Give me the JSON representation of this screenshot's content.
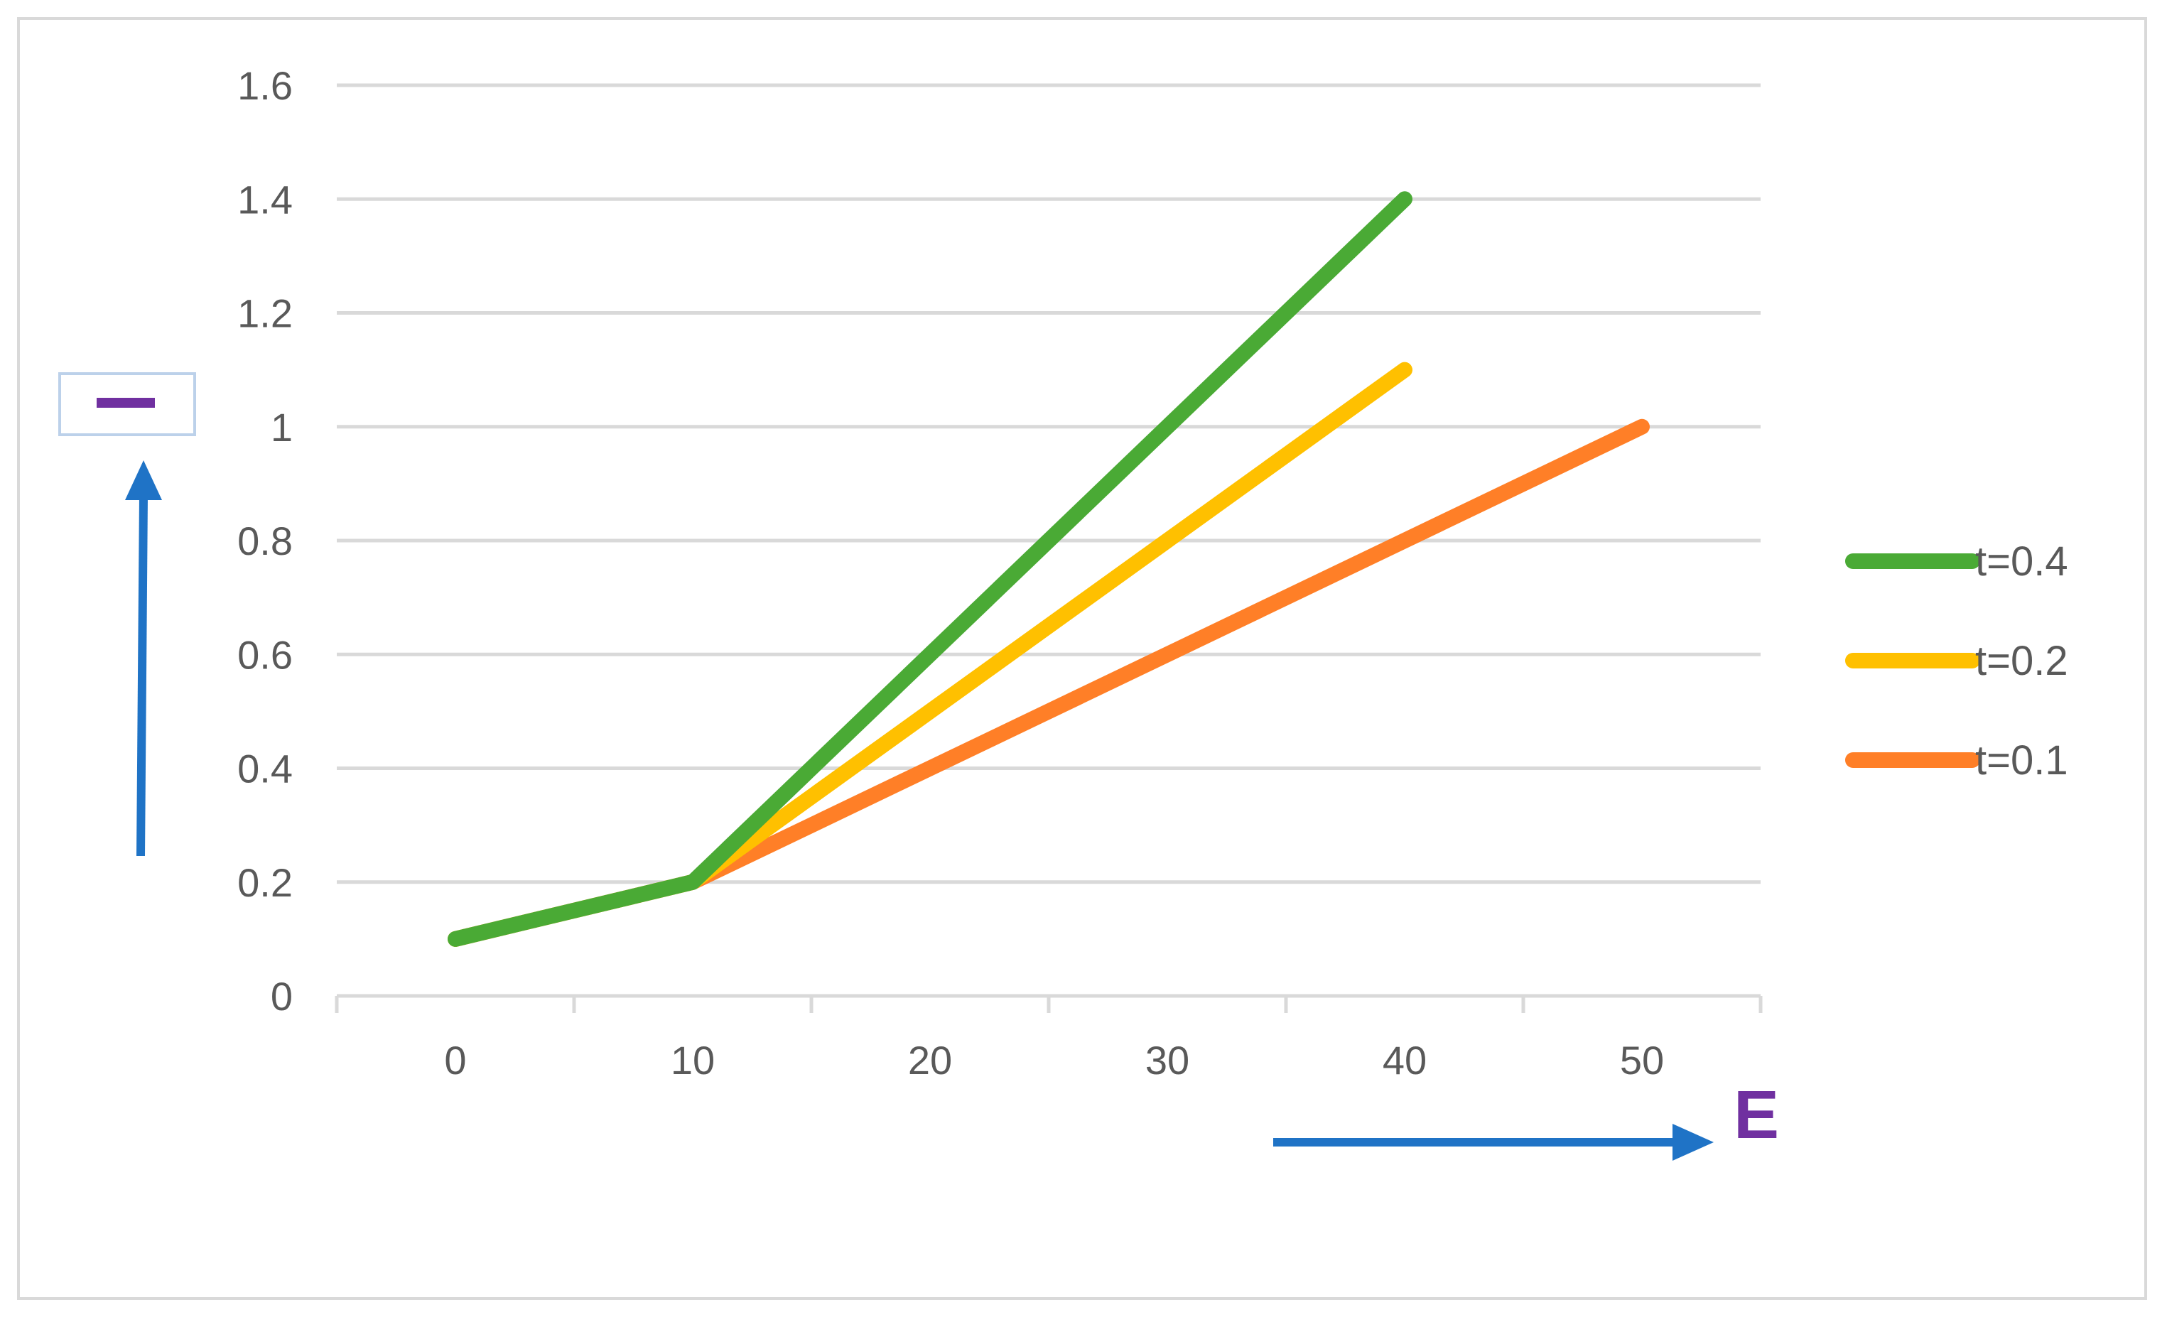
{
  "chart_data": {
    "type": "line",
    "x": [
      0,
      10,
      20,
      30,
      40,
      50
    ],
    "xlabel": "E",
    "ylabel": "",
    "ylim": [
      0,
      1.6
    ],
    "y_ticks": [
      "0",
      "0.2",
      "0.4",
      "0.6",
      "0.8",
      "1",
      "1.2",
      "1.4",
      "1.6"
    ],
    "x_ticks": [
      "0",
      "10",
      "20",
      "30",
      "40",
      "50"
    ],
    "grid": "horizontal",
    "legend_position": "right",
    "series": [
      {
        "name": "t=0.4",
        "color": "#4aaa35",
        "points": [
          [
            0,
            0.1
          ],
          [
            10,
            0.2
          ],
          [
            40,
            1.4
          ]
        ]
      },
      {
        "name": "t=0.2",
        "color": "#ffc000",
        "points": [
          [
            0,
            0.1
          ],
          [
            10,
            0.2
          ],
          [
            40,
            1.1
          ]
        ]
      },
      {
        "name": "t=0.1",
        "color": "#ff7f27",
        "points": [
          [
            0,
            0.1
          ],
          [
            10,
            0.2
          ],
          [
            50,
            1.0
          ]
        ]
      }
    ],
    "draw_order": [
      "t=0.1",
      "t=0.2",
      "t=0.4"
    ],
    "annotation_colors": {
      "arrow": "#1f73c6",
      "label": "#7030a0"
    }
  }
}
